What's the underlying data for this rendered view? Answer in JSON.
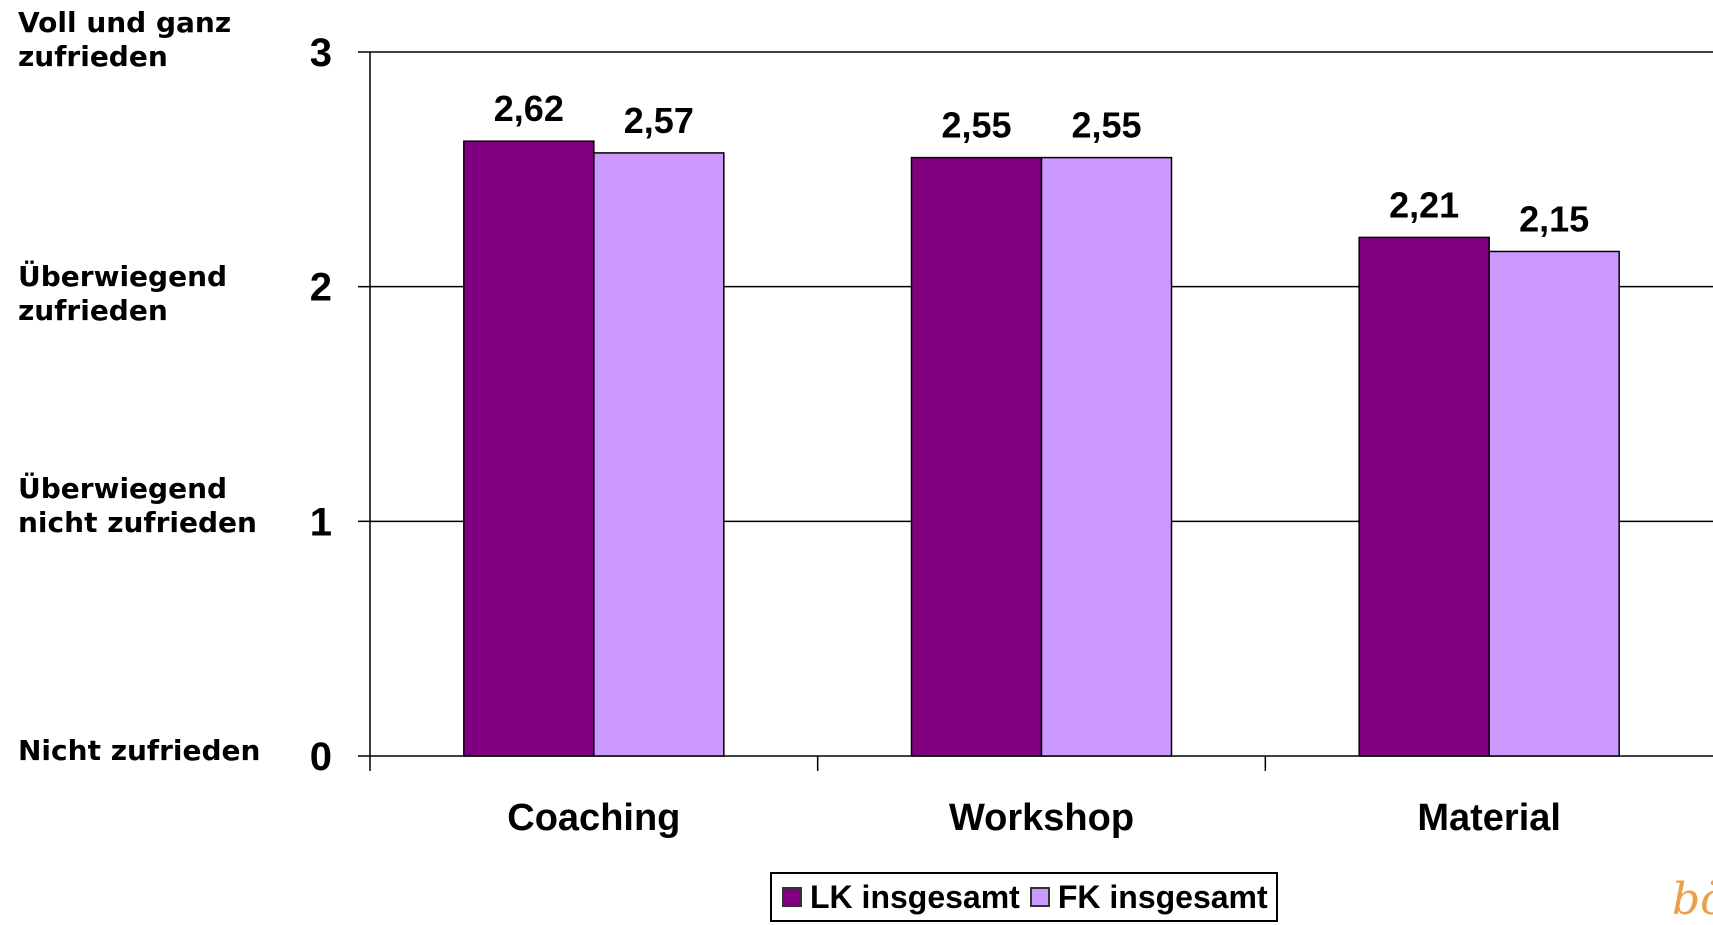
{
  "chart_data": {
    "type": "bar",
    "categories": [
      "Coaching",
      "Workshop",
      "Material"
    ],
    "series": [
      {
        "name": "LK insgesamt",
        "color": "#800080",
        "values": [
          2.62,
          2.55,
          2.21
        ],
        "labels": [
          "2,62",
          "2,55",
          "2,21"
        ]
      },
      {
        "name": "FK insgesamt",
        "color": "#cc99ff",
        "values": [
          2.57,
          2.55,
          2.15
        ],
        "labels": [
          "2,57",
          "2,55",
          "2,15"
        ]
      }
    ],
    "ylim": [
      0,
      3
    ],
    "yticks": [
      0,
      1,
      2,
      3
    ],
    "ytick_labels": [
      "0",
      "1",
      "2",
      "3"
    ],
    "y_category_labels": [
      {
        "value": 3,
        "lines": [
          "Voll und ganz",
          "zufrieden"
        ]
      },
      {
        "value": 2,
        "lines": [
          "Überwiegend",
          "zufrieden"
        ]
      },
      {
        "value": 1,
        "lines": [
          "Überwiegend",
          "nicht zufrieden"
        ]
      },
      {
        "value": 0,
        "lines": [
          "Nicht zufrieden"
        ]
      }
    ],
    "grid": true,
    "legend_position": "bottom"
  },
  "logo_text": "bö"
}
